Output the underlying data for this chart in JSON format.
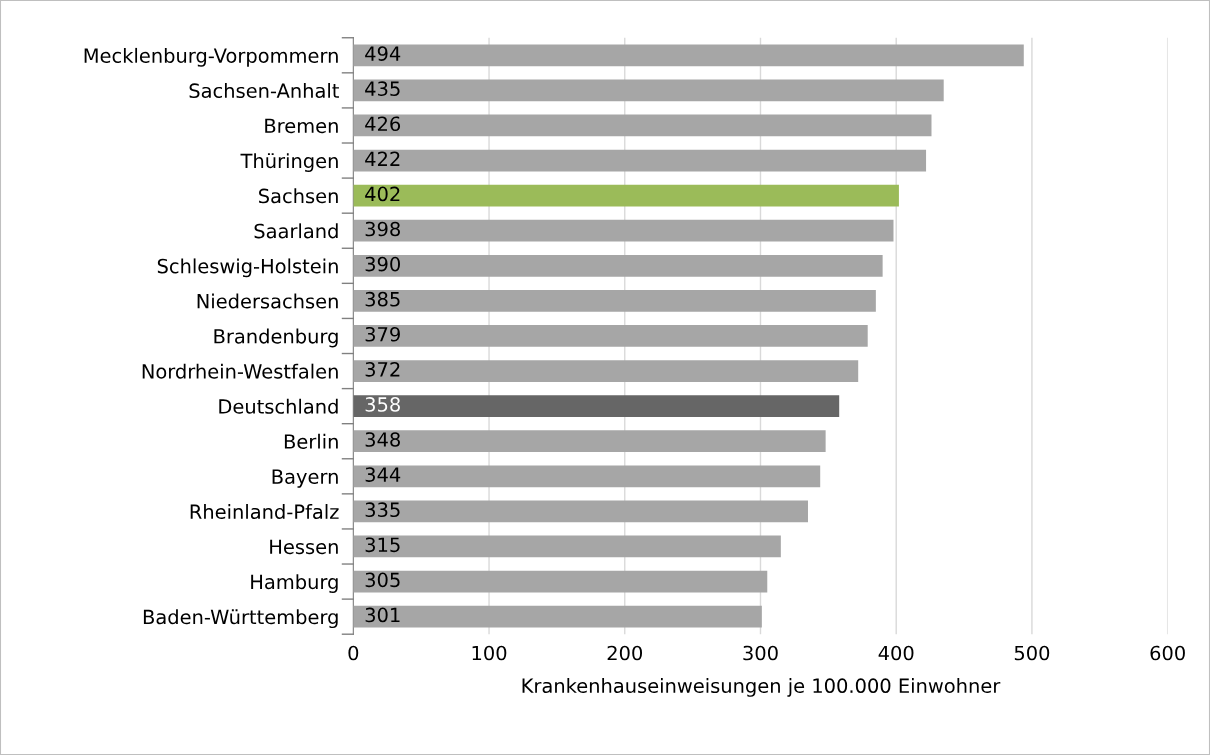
{
  "chart_data": {
    "type": "bar",
    "orientation": "horizontal",
    "xlabel": "Krankenhauseinweisungen je 100.000 Einwohner",
    "categories": [
      "Mecklenburg-Vorpommern",
      "Sachsen-Anhalt",
      "Bremen",
      "Thüringen",
      "Sachsen",
      "Saarland",
      "Schleswig-Holstein",
      "Niedersachsen",
      "Brandenburg",
      "Nordrhein-Westfalen",
      "Deutschland",
      "Berlin",
      "Bayern",
      "Rheinland-Pfalz",
      "Hessen",
      "Hamburg",
      "Baden-Württemberg"
    ],
    "values": [
      494,
      435,
      426,
      422,
      402,
      398,
      390,
      385,
      379,
      372,
      358,
      348,
      344,
      335,
      315,
      305,
      301
    ],
    "colors": [
      "#a6a6a6",
      "#a6a6a6",
      "#a6a6a6",
      "#a6a6a6",
      "#9bbb59",
      "#a6a6a6",
      "#a6a6a6",
      "#a6a6a6",
      "#a6a6a6",
      "#a6a6a6",
      "#666666",
      "#a6a6a6",
      "#a6a6a6",
      "#a6a6a6",
      "#a6a6a6",
      "#a6a6a6",
      "#a6a6a6"
    ],
    "xlim": [
      0,
      600
    ],
    "xticks": [
      0,
      100,
      200,
      300,
      400,
      500,
      600
    ],
    "grid": "x",
    "data_labels": true,
    "legend": false
  }
}
